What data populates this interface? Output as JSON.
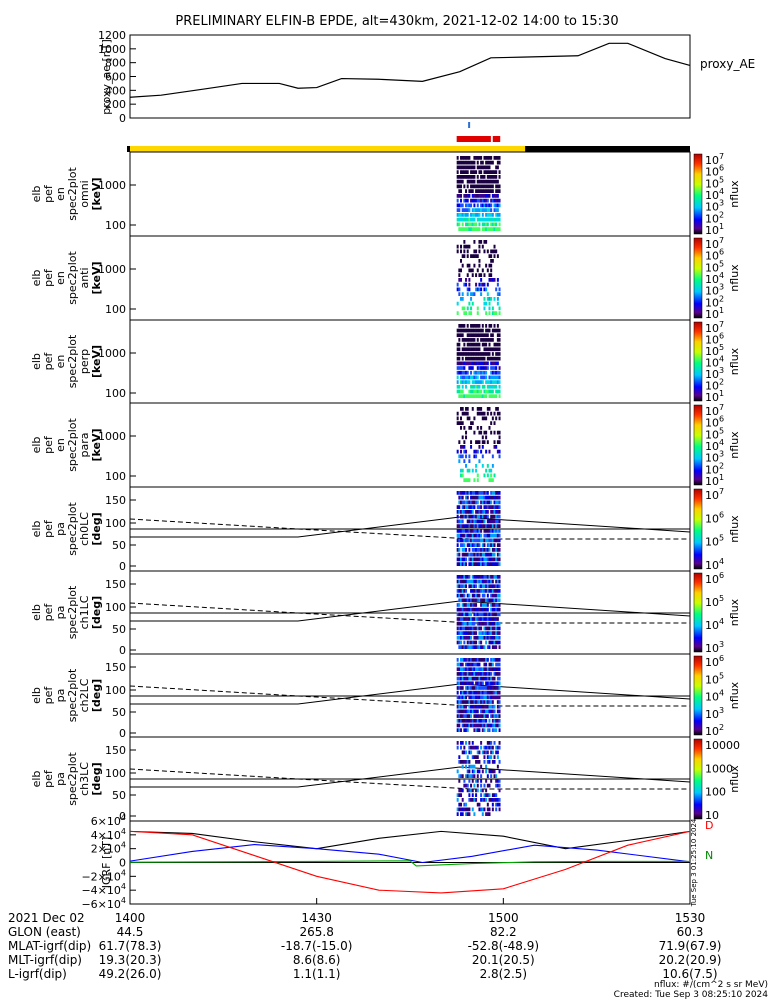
{
  "title": "PRELIMINARY ELFIN-B EPDE, alt=430km, 2021-12-02 14:00 to 15:30",
  "colors": {
    "orbit_bar_day": "#ffd700",
    "orbit_bar_night": "#000000",
    "science_zone": "#e00000",
    "ae_line": "#000000"
  },
  "chart_data": [
    {
      "type": "line",
      "id": "proxy_ae",
      "ylabel": "proxy_ae [nT]",
      "legend": "proxy_AE",
      "ylim": [
        0,
        1200
      ],
      "yticks": [
        "1200",
        "1000",
        "800",
        "600",
        "400",
        "200",
        "0"
      ],
      "x_minutes": [
        0,
        5,
        12,
        18,
        24,
        27,
        30,
        34,
        40,
        47,
        53,
        58,
        63,
        72,
        77,
        80,
        86,
        90
      ],
      "values": [
        300,
        330,
        420,
        500,
        500,
        430,
        440,
        570,
        560,
        530,
        670,
        870,
        880,
        900,
        1080,
        1080,
        860,
        760
      ]
    },
    {
      "type": "heatmap",
      "id": "omni",
      "ylabel": [
        "elb",
        "pef",
        "en",
        "spec2plot",
        "omni",
        "[keV]"
      ],
      "yticks": [
        "1000",
        "100"
      ],
      "colorbar_label": "nflux",
      "colorbar_ticks": [
        "10^7",
        "10^6",
        "10^5",
        "10^4",
        "10^3",
        "10^2",
        "10^1"
      ]
    },
    {
      "type": "heatmap",
      "id": "anti",
      "ylabel": [
        "elb",
        "pef",
        "en",
        "spec2plot",
        "anti",
        "[keV]"
      ],
      "yticks": [
        "1000",
        "100"
      ],
      "colorbar_label": "nflux",
      "colorbar_ticks": [
        "10^7",
        "10^6",
        "10^5",
        "10^4",
        "10^3",
        "10^2",
        "10^1"
      ]
    },
    {
      "type": "heatmap",
      "id": "perp",
      "ylabel": [
        "elb",
        "pef",
        "en",
        "spec2plot",
        "perp",
        "[keV]"
      ],
      "yticks": [
        "1000",
        "100"
      ],
      "colorbar_label": "nflux",
      "colorbar_ticks": [
        "10^7",
        "10^6",
        "10^5",
        "10^4",
        "10^3",
        "10^2",
        "10^1"
      ]
    },
    {
      "type": "heatmap",
      "id": "para",
      "ylabel": [
        "elb",
        "pef",
        "en",
        "spec2plot",
        "para",
        "[keV]"
      ],
      "yticks": [
        "1000",
        "100"
      ],
      "colorbar_label": "nflux",
      "colorbar_ticks": [
        "10^7",
        "10^6",
        "10^5",
        "10^4",
        "10^3",
        "10^2",
        "10^1"
      ]
    },
    {
      "type": "heatmap",
      "id": "ch0LC",
      "ylabel": [
        "elb",
        "pef",
        "pa",
        "spec2plot",
        "ch0LC",
        "[deg]"
      ],
      "yticks": [
        "150",
        "100",
        "50",
        "0"
      ],
      "colorbar_label": "nflux",
      "colorbar_ticks": [
        "10^7",
        "10^6",
        "10^5",
        "10^4"
      ]
    },
    {
      "type": "heatmap",
      "id": "ch1LC",
      "ylabel": [
        "elb",
        "pef",
        "pa",
        "spec2plot",
        "ch1LC",
        "[deg]"
      ],
      "yticks": [
        "150",
        "100",
        "50",
        "0"
      ],
      "colorbar_label": "nflux",
      "colorbar_ticks": [
        "10^6",
        "10^5",
        "10^4",
        "10^3"
      ]
    },
    {
      "type": "heatmap",
      "id": "ch2LC",
      "ylabel": [
        "elb",
        "pef",
        "pa",
        "spec2plot",
        "ch2LC",
        "[deg]"
      ],
      "yticks": [
        "150",
        "100",
        "50",
        "0"
      ],
      "colorbar_label": "nflux",
      "colorbar_ticks": [
        "10^6",
        "10^5",
        "10^4",
        "10^3",
        "10^2"
      ]
    },
    {
      "type": "heatmap",
      "id": "ch3LC",
      "ylabel": [
        "elb",
        "pef",
        "pa",
        "spec2plot",
        "ch3LC",
        "[deg]"
      ],
      "yticks": [
        "150",
        "100",
        "50",
        "0"
      ],
      "colorbar_label": "nflux",
      "colorbar_ticks": [
        "10000",
        "1000",
        "100",
        "10"
      ]
    },
    {
      "type": "line",
      "id": "igrf",
      "ylabel": "IGRF [nT]",
      "ylim": [
        -60000,
        60000
      ],
      "yticks": [
        "6×10^4",
        "4×10^4",
        "2×10^4",
        "0",
        "−2×10^4",
        "−4×10^4",
        "−6×10^4"
      ],
      "side_label": "Tue Sep 3 01:25:10 2024",
      "legend": [
        "D",
        "N"
      ],
      "series": [
        {
          "name": "total",
          "color": "#000000",
          "x_minutes": [
            0,
            10,
            20,
            30,
            40,
            50,
            60,
            70,
            80,
            90
          ],
          "values": [
            45000,
            42000,
            30000,
            20000,
            35000,
            45000,
            38000,
            20000,
            32000,
            45000
          ]
        },
        {
          "name": "east",
          "color": "#0000ff",
          "x_minutes": [
            0,
            10,
            20,
            30,
            40,
            47,
            55,
            65,
            75,
            90
          ],
          "values": [
            2000,
            16000,
            26000,
            20000,
            12000,
            0,
            9000,
            25000,
            18000,
            1000
          ]
        },
        {
          "name": "north",
          "color": "#00aa00",
          "x_minutes": [
            0,
            15,
            30,
            45,
            46,
            55,
            65,
            75,
            90
          ],
          "values": [
            500,
            1000,
            1500,
            2500,
            -5000,
            -1500,
            1000,
            1500,
            1500
          ]
        },
        {
          "name": "down",
          "color": "#ff0000",
          "x_minutes": [
            0,
            10,
            20,
            30,
            40,
            50,
            60,
            70,
            80,
            90
          ],
          "values": [
            45000,
            40000,
            10000,
            -20000,
            -40000,
            -44000,
            -38000,
            -10000,
            25000,
            45000
          ]
        }
      ]
    }
  ],
  "xaxis": {
    "labels": [
      "2021 Dec 02",
      "GLON (east)",
      "MLAT-igrf(dip)",
      "MLT-igrf(dip)",
      "L-igrf(dip)"
    ],
    "times": [
      "1400",
      "1430",
      "1500",
      "1530"
    ],
    "glon": [
      "44.5",
      "265.8",
      "82.2",
      "60.3"
    ],
    "mlat": [
      "61.7(78.3)",
      "-18.7(-15.0)",
      "-52.8(-48.9)",
      "71.9(67.9)"
    ],
    "mlt": [
      "19.3(20.3)",
      "8.6(8.6)",
      "20.1(20.5)",
      "20.2(20.9)"
    ],
    "lshell": [
      "49.2(26.0)",
      "1.1(1.1)",
      "2.8(2.5)",
      "10.6(7.5)"
    ]
  },
  "footer": {
    "units": "nflux: #/(cm^2 s sr MeV)",
    "created": "Created: Tue Sep  3 08:25:10 2024"
  }
}
